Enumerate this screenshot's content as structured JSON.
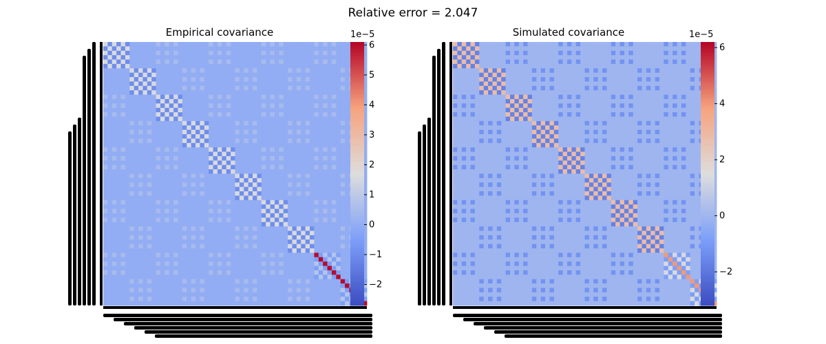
{
  "suptitle": "Relative error = 2.047",
  "colormap": "coolwarm",
  "colors": {
    "low": "#3b4cc0",
    "mid": "#dddddd",
    "high": "#b40426",
    "axis": "#000000",
    "background": "#ffffff"
  },
  "chart_data": [
    {
      "type": "heatmap",
      "title": "Empirical covariance",
      "matrix_size": 60,
      "block_size": 6,
      "blocks": 10,
      "tick_labels_legible": false,
      "baseline_value": 0,
      "diagonal_block_amplitude": 1.6,
      "off_block_amplitude": 0.5,
      "tail_diagonal_value": 6,
      "scale_exponent_label": "1e−5",
      "colorbar": {
        "vmin": -2.7,
        "vmax": 6.1,
        "ticks": [
          -2,
          -1,
          0,
          1,
          2,
          3,
          4,
          5,
          6
        ],
        "tick_labels": [
          "−2",
          "−1",
          "0",
          "1",
          "2",
          "3",
          "4",
          "5",
          "6"
        ]
      }
    },
    {
      "type": "heatmap",
      "title": "Simulated covariance",
      "matrix_size": 60,
      "block_size": 6,
      "blocks": 10,
      "tick_labels_legible": false,
      "baseline_value": 0,
      "diagonal_block_amplitude": 2.8,
      "off_block_amplitude": -1.2,
      "tail_diagonal_value": 4,
      "scale_exponent_label": "1e−5",
      "colorbar": {
        "vmin": -3.2,
        "vmax": 6.2,
        "ticks": [
          -2,
          0,
          2,
          4,
          6
        ],
        "tick_labels": [
          "−2",
          "0",
          "2",
          "4",
          "6"
        ]
      }
    }
  ]
}
